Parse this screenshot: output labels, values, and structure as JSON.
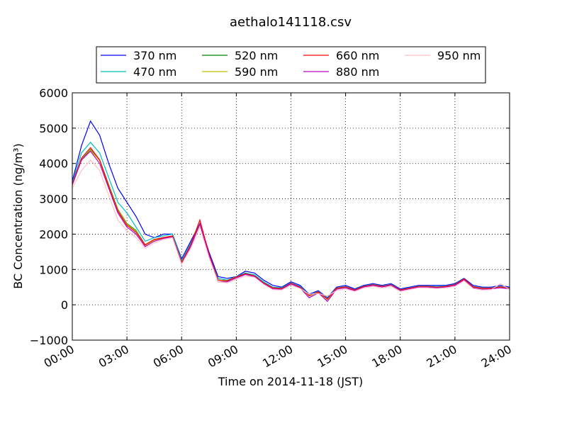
{
  "chart_data": {
    "type": "line",
    "title": "aethalo141118.csv",
    "xlabel": "Time on 2014-11-18 (JST)",
    "ylabel": "BC Concentration (ng/m³)",
    "x": [
      0,
      0.5,
      1,
      1.5,
      2,
      2.5,
      3,
      3.5,
      4,
      4.5,
      5,
      5.5,
      6,
      6.5,
      7,
      7.5,
      8,
      8.5,
      9,
      9.5,
      10,
      10.5,
      11,
      11.5,
      12,
      12.5,
      13,
      13.5,
      14,
      14.5,
      15,
      15.5,
      16,
      16.5,
      17,
      17.5,
      18,
      18.5,
      19,
      19.5,
      20,
      20.5,
      21,
      21.5,
      22,
      22.5,
      23,
      23.5,
      24
    ],
    "xlim": [
      0,
      24
    ],
    "xticks": [
      {
        "value": 0,
        "label": "00:00"
      },
      {
        "value": 3,
        "label": "03:00"
      },
      {
        "value": 6,
        "label": "06:00"
      },
      {
        "value": 9,
        "label": "09:00"
      },
      {
        "value": 12,
        "label": "12:00"
      },
      {
        "value": 15,
        "label": "15:00"
      },
      {
        "value": 18,
        "label": "18:00"
      },
      {
        "value": 21,
        "label": "21:00"
      },
      {
        "value": 24,
        "label": "24:00"
      }
    ],
    "ylim": [
      -1000,
      6000
    ],
    "yticks": [
      {
        "value": -1000,
        "label": "−1000"
      },
      0,
      1000,
      2000,
      3000,
      4000,
      5000,
      6000
    ],
    "grid": true,
    "legend": "upper center",
    "series": [
      {
        "name": "370 nm",
        "color": "#0000ff",
        "values": [
          3500,
          4500,
          5200,
          4800,
          4000,
          3300,
          2900,
          2500,
          2000,
          1900,
          2000,
          2000,
          1300,
          1800,
          2300,
          1500,
          800,
          750,
          800,
          950,
          900,
          700,
          550,
          500,
          650,
          550,
          300,
          400,
          200,
          500,
          550,
          450,
          550,
          600,
          550,
          600,
          450,
          500,
          550,
          550,
          550,
          550,
          600,
          750,
          550,
          500,
          500,
          550,
          500
        ]
      },
      {
        "name": "470 nm",
        "color": "#00bfbf",
        "values": [
          3450,
          4300,
          4600,
          4300,
          3600,
          2900,
          2600,
          2200,
          1800,
          1900,
          1950,
          2000,
          1250,
          1750,
          2250,
          1400,
          750,
          700,
          800,
          900,
          850,
          650,
          500,
          480,
          620,
          520,
          280,
          380,
          180,
          480,
          520,
          430,
          530,
          580,
          530,
          580,
          430,
          480,
          530,
          530,
          520,
          530,
          580,
          730,
          520,
          480,
          480,
          520,
          480
        ]
      },
      {
        "name": "520 nm",
        "color": "#008000",
        "values": [
          3400,
          4100,
          4400,
          4100,
          3400,
          2700,
          2300,
          2100,
          1700,
          1850,
          1900,
          1950,
          1200,
          1700,
          2300,
          1450,
          700,
          680,
          780,
          880,
          820,
          620,
          480,
          460,
          600,
          500,
          260,
          360,
          160,
          460,
          500,
          420,
          520,
          560,
          520,
          560,
          420,
          470,
          520,
          520,
          500,
          520,
          560,
          720,
          500,
          460,
          470,
          500,
          470
        ]
      },
      {
        "name": "590 nm",
        "color": "#bfbf00",
        "values": [
          3380,
          4080,
          4380,
          4080,
          3380,
          2680,
          2280,
          2080,
          1680,
          1830,
          1880,
          1930,
          1180,
          1680,
          2280,
          1430,
          690,
          670,
          770,
          870,
          810,
          610,
          470,
          450,
          590,
          490,
          250,
          350,
          150,
          450,
          490,
          410,
          510,
          550,
          510,
          550,
          410,
          460,
          510,
          510,
          490,
          510,
          550,
          710,
          490,
          450,
          460,
          490,
          460
        ]
      },
      {
        "name": "660 nm",
        "color": "#ff0000",
        "values": [
          3420,
          4150,
          4450,
          4100,
          3350,
          2650,
          2250,
          2050,
          1700,
          1850,
          1900,
          1950,
          1200,
          1700,
          2400,
          1450,
          700,
          680,
          790,
          880,
          820,
          620,
          480,
          460,
          610,
          500,
          260,
          370,
          160,
          470,
          510,
          420,
          520,
          570,
          520,
          570,
          420,
          470,
          520,
          520,
          500,
          520,
          570,
          730,
          510,
          470,
          470,
          510,
          470
        ]
      },
      {
        "name": "880 nm",
        "color": "#bf00bf",
        "values": [
          3400,
          4100,
          4350,
          4000,
          3300,
          2600,
          2200,
          2000,
          1650,
          1800,
          1880,
          1920,
          1150,
          1650,
          2300,
          1400,
          650,
          650,
          760,
          860,
          800,
          600,
          450,
          440,
          590,
          480,
          200,
          340,
          100,
          440,
          480,
          400,
          500,
          550,
          500,
          560,
          400,
          450,
          500,
          500,
          480,
          500,
          550,
          700,
          480,
          440,
          450,
          480,
          450
        ]
      },
      {
        "name": "950 nm",
        "color": "#ffc0cb",
        "values": [
          3300,
          3800,
          4100,
          3800,
          3100,
          2400,
          2100,
          1900,
          1600,
          1750,
          1850,
          1900,
          1150,
          1600,
          2200,
          1350,
          650,
          620,
          720,
          820,
          780,
          580,
          430,
          420,
          560,
          460,
          300,
          320,
          250,
          400,
          450,
          380,
          480,
          520,
          480,
          520,
          380,
          430,
          480,
          480,
          460,
          480,
          520,
          680,
          460,
          420,
          430,
          600,
          430
        ]
      }
    ]
  }
}
